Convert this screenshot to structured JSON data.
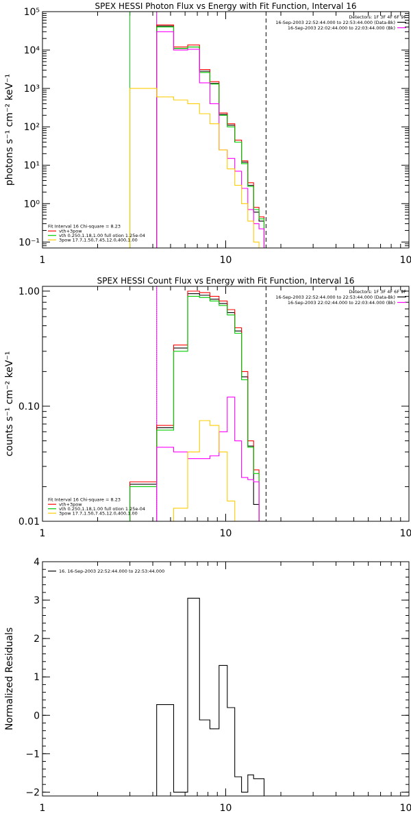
{
  "chart_data": [
    {
      "type": "line",
      "title": "SPEX HESSI Photon Flux vs Energy with Fit Function, Interval 16",
      "ylabel": "photons s⁻¹ cm⁻² keV⁻¹",
      "xscale": "log",
      "yscale": "log",
      "xlim": [
        1,
        100
      ],
      "ylim": [
        0.07,
        100000
      ],
      "xticks": [
        {
          "v": 1,
          "t": "1"
        },
        {
          "v": 10,
          "t": "10"
        },
        {
          "v": 100,
          "t": "100"
        }
      ],
      "yticks": [
        {
          "v": 0.1,
          "t": "10⁻¹"
        },
        {
          "v": 1,
          "t": "10⁰"
        },
        {
          "v": 10,
          "t": "10¹"
        },
        {
          "v": 100,
          "t": "10²"
        },
        {
          "v": 1000,
          "t": "10³"
        },
        {
          "v": 10000,
          "t": "10⁴"
        },
        {
          "v": 100000,
          "t": "10⁵"
        }
      ],
      "edges": [
        3.0,
        4.2,
        5.2,
        6.2,
        7.2,
        8.2,
        9.2,
        10.2,
        11.2,
        12.2,
        13.2,
        14.2,
        15.2,
        16.2
      ],
      "series": [
        {
          "color": "#000000",
          "values": [
            null,
            42000,
            11000,
            12000,
            2800,
            1350,
            210,
            110,
            40,
            12,
            3.0,
            0.6,
            0.35
          ]
        },
        {
          "color": "#ff0000",
          "values": [
            null,
            45000,
            12000,
            13500,
            3100,
            1500,
            230,
            120,
            45,
            13,
            3.5,
            0.8,
            0.45
          ]
        },
        {
          "color": "#00cc00",
          "values": [
            null,
            40000,
            11000,
            12000,
            2600,
            1300,
            200,
            100,
            40,
            11,
            2.8,
            0.7,
            0.4
          ]
        },
        {
          "color": "#ff00ff",
          "values": [
            null,
            30000,
            10000,
            10500,
            1400,
            400,
            25,
            15,
            7,
            2.5,
            0.7,
            0.3,
            0.22
          ]
        },
        {
          "color": "#ffcc00",
          "values": [
            1000,
            600,
            500,
            400,
            220,
            120,
            25,
            8,
            3,
            1,
            0.35,
            0.1,
            0.05
          ]
        }
      ],
      "vlines": [
        {
          "x": 3.0,
          "color": "#00cc00",
          "style": "solid"
        },
        {
          "x": 4.2,
          "color": "#00cc00",
          "style": "solid"
        },
        {
          "x": 4.2,
          "color": "#ff00ff",
          "style": "solid"
        },
        {
          "x": 16.6,
          "color": "#000000",
          "style": "dashed"
        }
      ],
      "legend_right": {
        "header": "Detectors: 1F 3F 4F 6F 9F",
        "rows": [
          {
            "text": "16-Sep-2003 22:52:44.000 to 22:53:44.000 (Data-Bk)",
            "color": "#000000"
          },
          {
            "text": "16-Sep-2003 22:02:44.000 to 22:03:44.000 (Bk)",
            "color": "#ff00ff"
          }
        ]
      },
      "legend_left": {
        "header": "Fit Interval 16   Chi-square = 8.23",
        "rows": [
          {
            "text": "vth+3pow",
            "color": "#ff0000"
          },
          {
            "text": "vth 0.250,1.18,1.00  full otion 1.25e-04",
            "color": "#00cc00"
          },
          {
            "text": "3pow 17.7,1.50,7.45,12.0,400,1.00",
            "color": "#ffcc00"
          }
        ]
      }
    },
    {
      "type": "line",
      "title": "SPEX HESSI Count Flux vs Energy with Fit Function, Interval 16",
      "ylabel": "counts s⁻¹ cm⁻² keV⁻¹",
      "xscale": "log",
      "yscale": "log",
      "xlim": [
        1,
        100
      ],
      "ylim": [
        0.01,
        1.1
      ],
      "xticks": [
        {
          "v": 1,
          "t": "1"
        },
        {
          "v": 10,
          "t": "10"
        },
        {
          "v": 100,
          "t": "100"
        }
      ],
      "yticks": [
        {
          "v": 0.01,
          "t": "0.01"
        },
        {
          "v": 0.1,
          "t": "0.10"
        },
        {
          "v": 1,
          "t": "1.00"
        }
      ],
      "edges": [
        3.0,
        4.2,
        5.2,
        6.2,
        7.2,
        8.2,
        9.2,
        10.2,
        11.2,
        12.2,
        13.2,
        14.2,
        15.2,
        16.2
      ],
      "series": [
        {
          "color": "#000000",
          "values": [
            0.021,
            0.065,
            0.32,
            0.95,
            0.92,
            0.85,
            0.78,
            0.65,
            0.45,
            0.18,
            0.045,
            0.014,
            null
          ]
        },
        {
          "color": "#ff0000",
          "values": [
            0.022,
            0.068,
            0.34,
            1.0,
            0.97,
            0.9,
            0.82,
            0.69,
            0.48,
            0.2,
            0.05,
            0.028,
            null
          ]
        },
        {
          "color": "#00cc00",
          "values": [
            0.02,
            0.062,
            0.3,
            0.9,
            0.88,
            0.82,
            0.75,
            0.62,
            0.43,
            0.17,
            0.044,
            0.026,
            null
          ]
        },
        {
          "color": "#ff00ff",
          "values": [
            null,
            0.044,
            0.04,
            0.035,
            0.035,
            0.037,
            0.06,
            0.12,
            0.05,
            0.024,
            0.023,
            0.022,
            null
          ]
        },
        {
          "color": "#ffcc00",
          "values": [
            null,
            null,
            0.013,
            0.04,
            0.075,
            0.068,
            0.04,
            0.015,
            0.01,
            null,
            null,
            null,
            null
          ]
        }
      ],
      "vlines": [
        {
          "x": 4.2,
          "color": "#000000",
          "style": "dotted"
        },
        {
          "x": 4.2,
          "color": "#ff00ff",
          "style": "solid"
        },
        {
          "x": 16.6,
          "color": "#000000",
          "style": "dashed"
        }
      ],
      "legend_right": {
        "header": "Detectors: 1F 3F 4F 6F 9F",
        "rows": [
          {
            "text": "16-Sep-2003 22:52:44.000 to 22:53:44.000 (Data-Bk)",
            "color": "#000000"
          },
          {
            "text": "16-Sep-2003 22:02:44.000 to 22:03:44.000 (Bk)",
            "color": "#ff00ff"
          }
        ]
      },
      "legend_left": {
        "header": "Fit Interval 16   Chi-square = 8.23",
        "rows": [
          {
            "text": "vth+3pow",
            "color": "#ff0000"
          },
          {
            "text": "vth 0.250,1.18,1.00  full otion 1.25e-04",
            "color": "#00cc00"
          },
          {
            "text": "3pow 17.7,1.50,7.45,12.0,400,1.00",
            "color": "#ffcc00"
          }
        ]
      }
    },
    {
      "type": "line",
      "title": "",
      "ylabel": "Normalized Residuals",
      "xscale": "log",
      "yscale": "linear",
      "xlim": [
        1,
        100
      ],
      "ylim": [
        -2.1,
        4
      ],
      "xticks": [
        {
          "v": 1,
          "t": "1"
        },
        {
          "v": 10,
          "t": "10"
        },
        {
          "v": 100,
          "t": "100"
        }
      ],
      "yticks": [
        {
          "v": -2,
          "t": "−2"
        },
        {
          "v": -1,
          "t": "−1"
        },
        {
          "v": 0,
          "t": "0"
        },
        {
          "v": 1,
          "t": "1"
        },
        {
          "v": 2,
          "t": "2"
        },
        {
          "v": 3,
          "t": "3"
        },
        {
          "v": 4,
          "t": "4"
        }
      ],
      "edges": [
        4.2,
        5.2,
        6.2,
        7.2,
        8.2,
        9.2,
        10.2,
        11.2,
        12.2,
        13.2,
        14.2,
        15.2,
        16.2
      ],
      "series": [
        {
          "color": "#000000",
          "values": [
            0.28,
            -2.0,
            3.05,
            -0.12,
            -0.35,
            1.3,
            0.2,
            -1.6,
            -2.0,
            -1.55,
            -1.65,
            -1.65
          ]
        }
      ],
      "vlines": [],
      "legend_left": {
        "header": "",
        "rows": [
          {
            "text": "16. 16-Sep-2003 22:52:44.000 to 22:53:44.000",
            "color": "#000000"
          }
        ]
      }
    }
  ]
}
